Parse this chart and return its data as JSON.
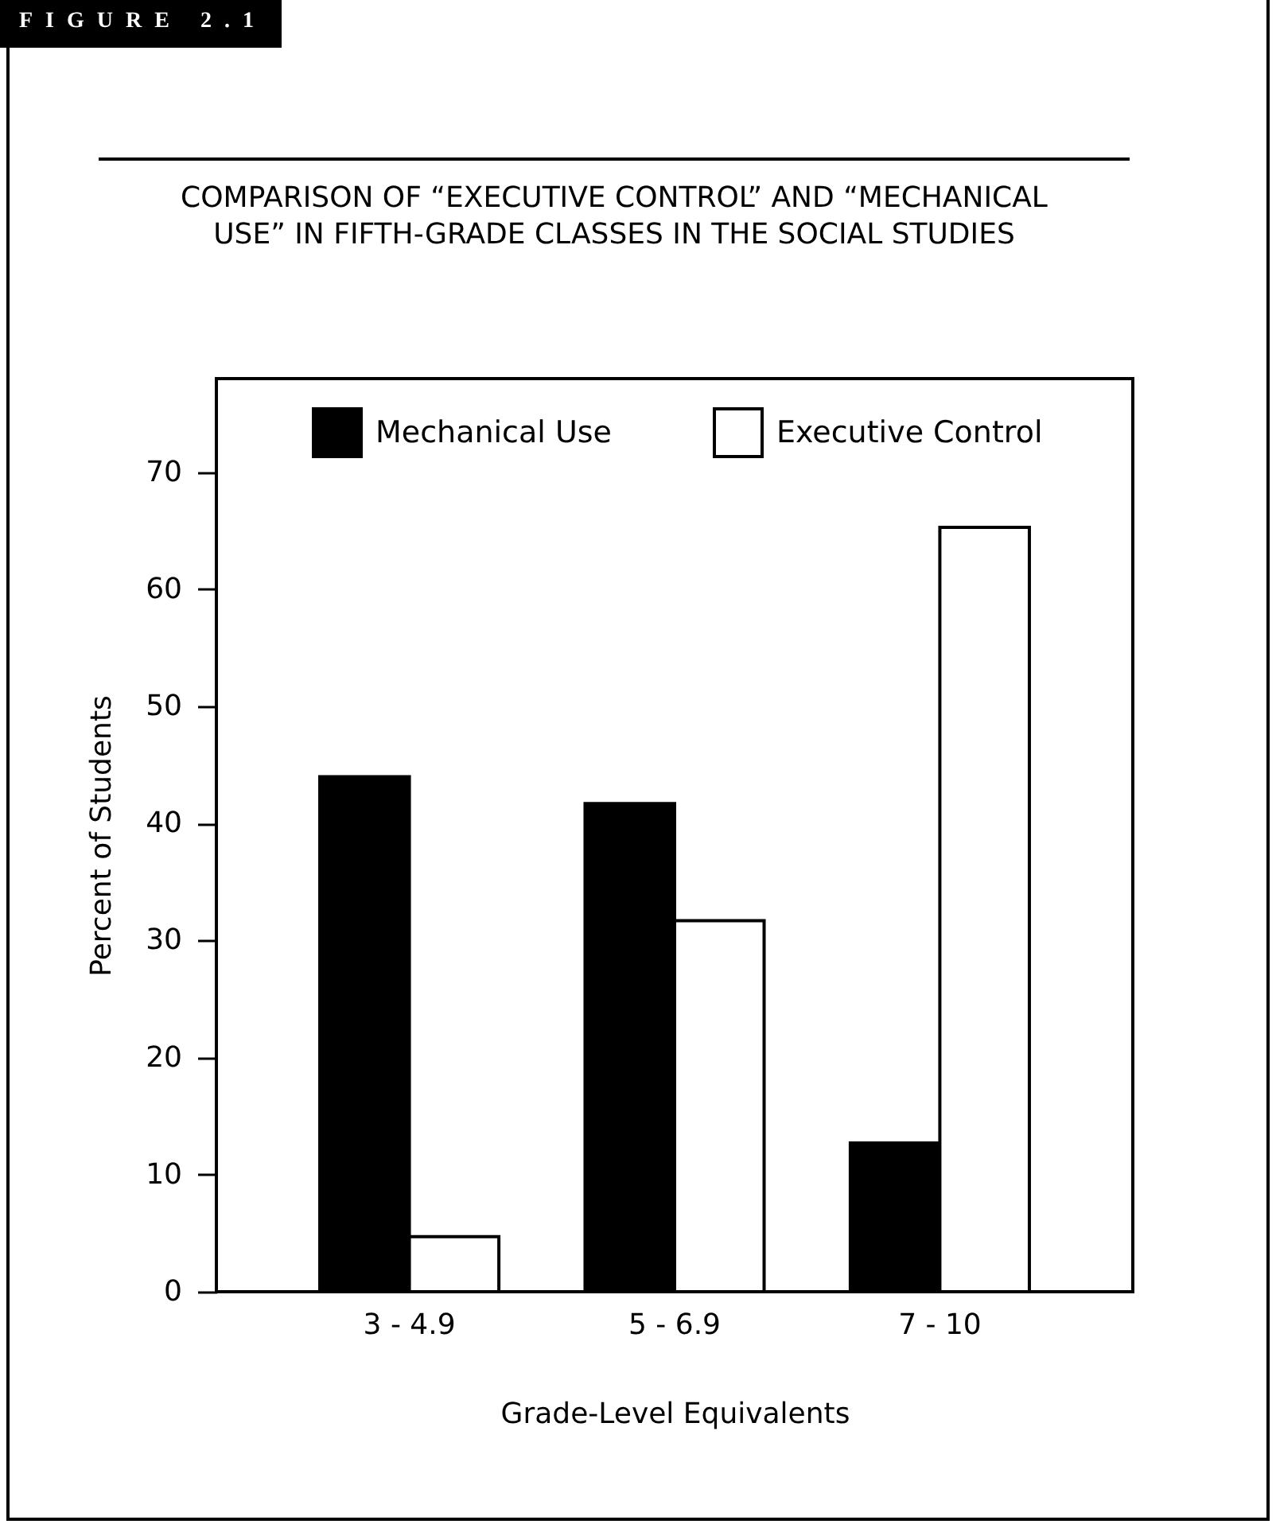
{
  "chart_data": {
    "type": "bar",
    "title": "COMPARISON OF “EXECUTIVE CONTROL” AND “MECHANICAL USE” IN FIFTH-GRADE CLASSES IN THE SOCIAL STUDIES",
    "annotations": [
      "FIGURE 2.1"
    ],
    "xlabel": "Grade-Level Equivalents",
    "ylabel": "Percent of Students",
    "categories": [
      "3 - 4.9",
      "5 - 6.9",
      "7 - 10"
    ],
    "series": [
      {
        "name": "Mechanical Use",
        "color": "#000000",
        "values": [
          44,
          41.7,
          12.7
        ]
      },
      {
        "name": "Executive Control",
        "color": "#ffffff",
        "values": [
          4.7,
          31.7,
          65.3
        ]
      }
    ],
    "ylim": [
      0,
      78
    ],
    "yticks": [
      0,
      10,
      20,
      30,
      40,
      50,
      60,
      70
    ],
    "grid": false,
    "legend": "top"
  }
}
